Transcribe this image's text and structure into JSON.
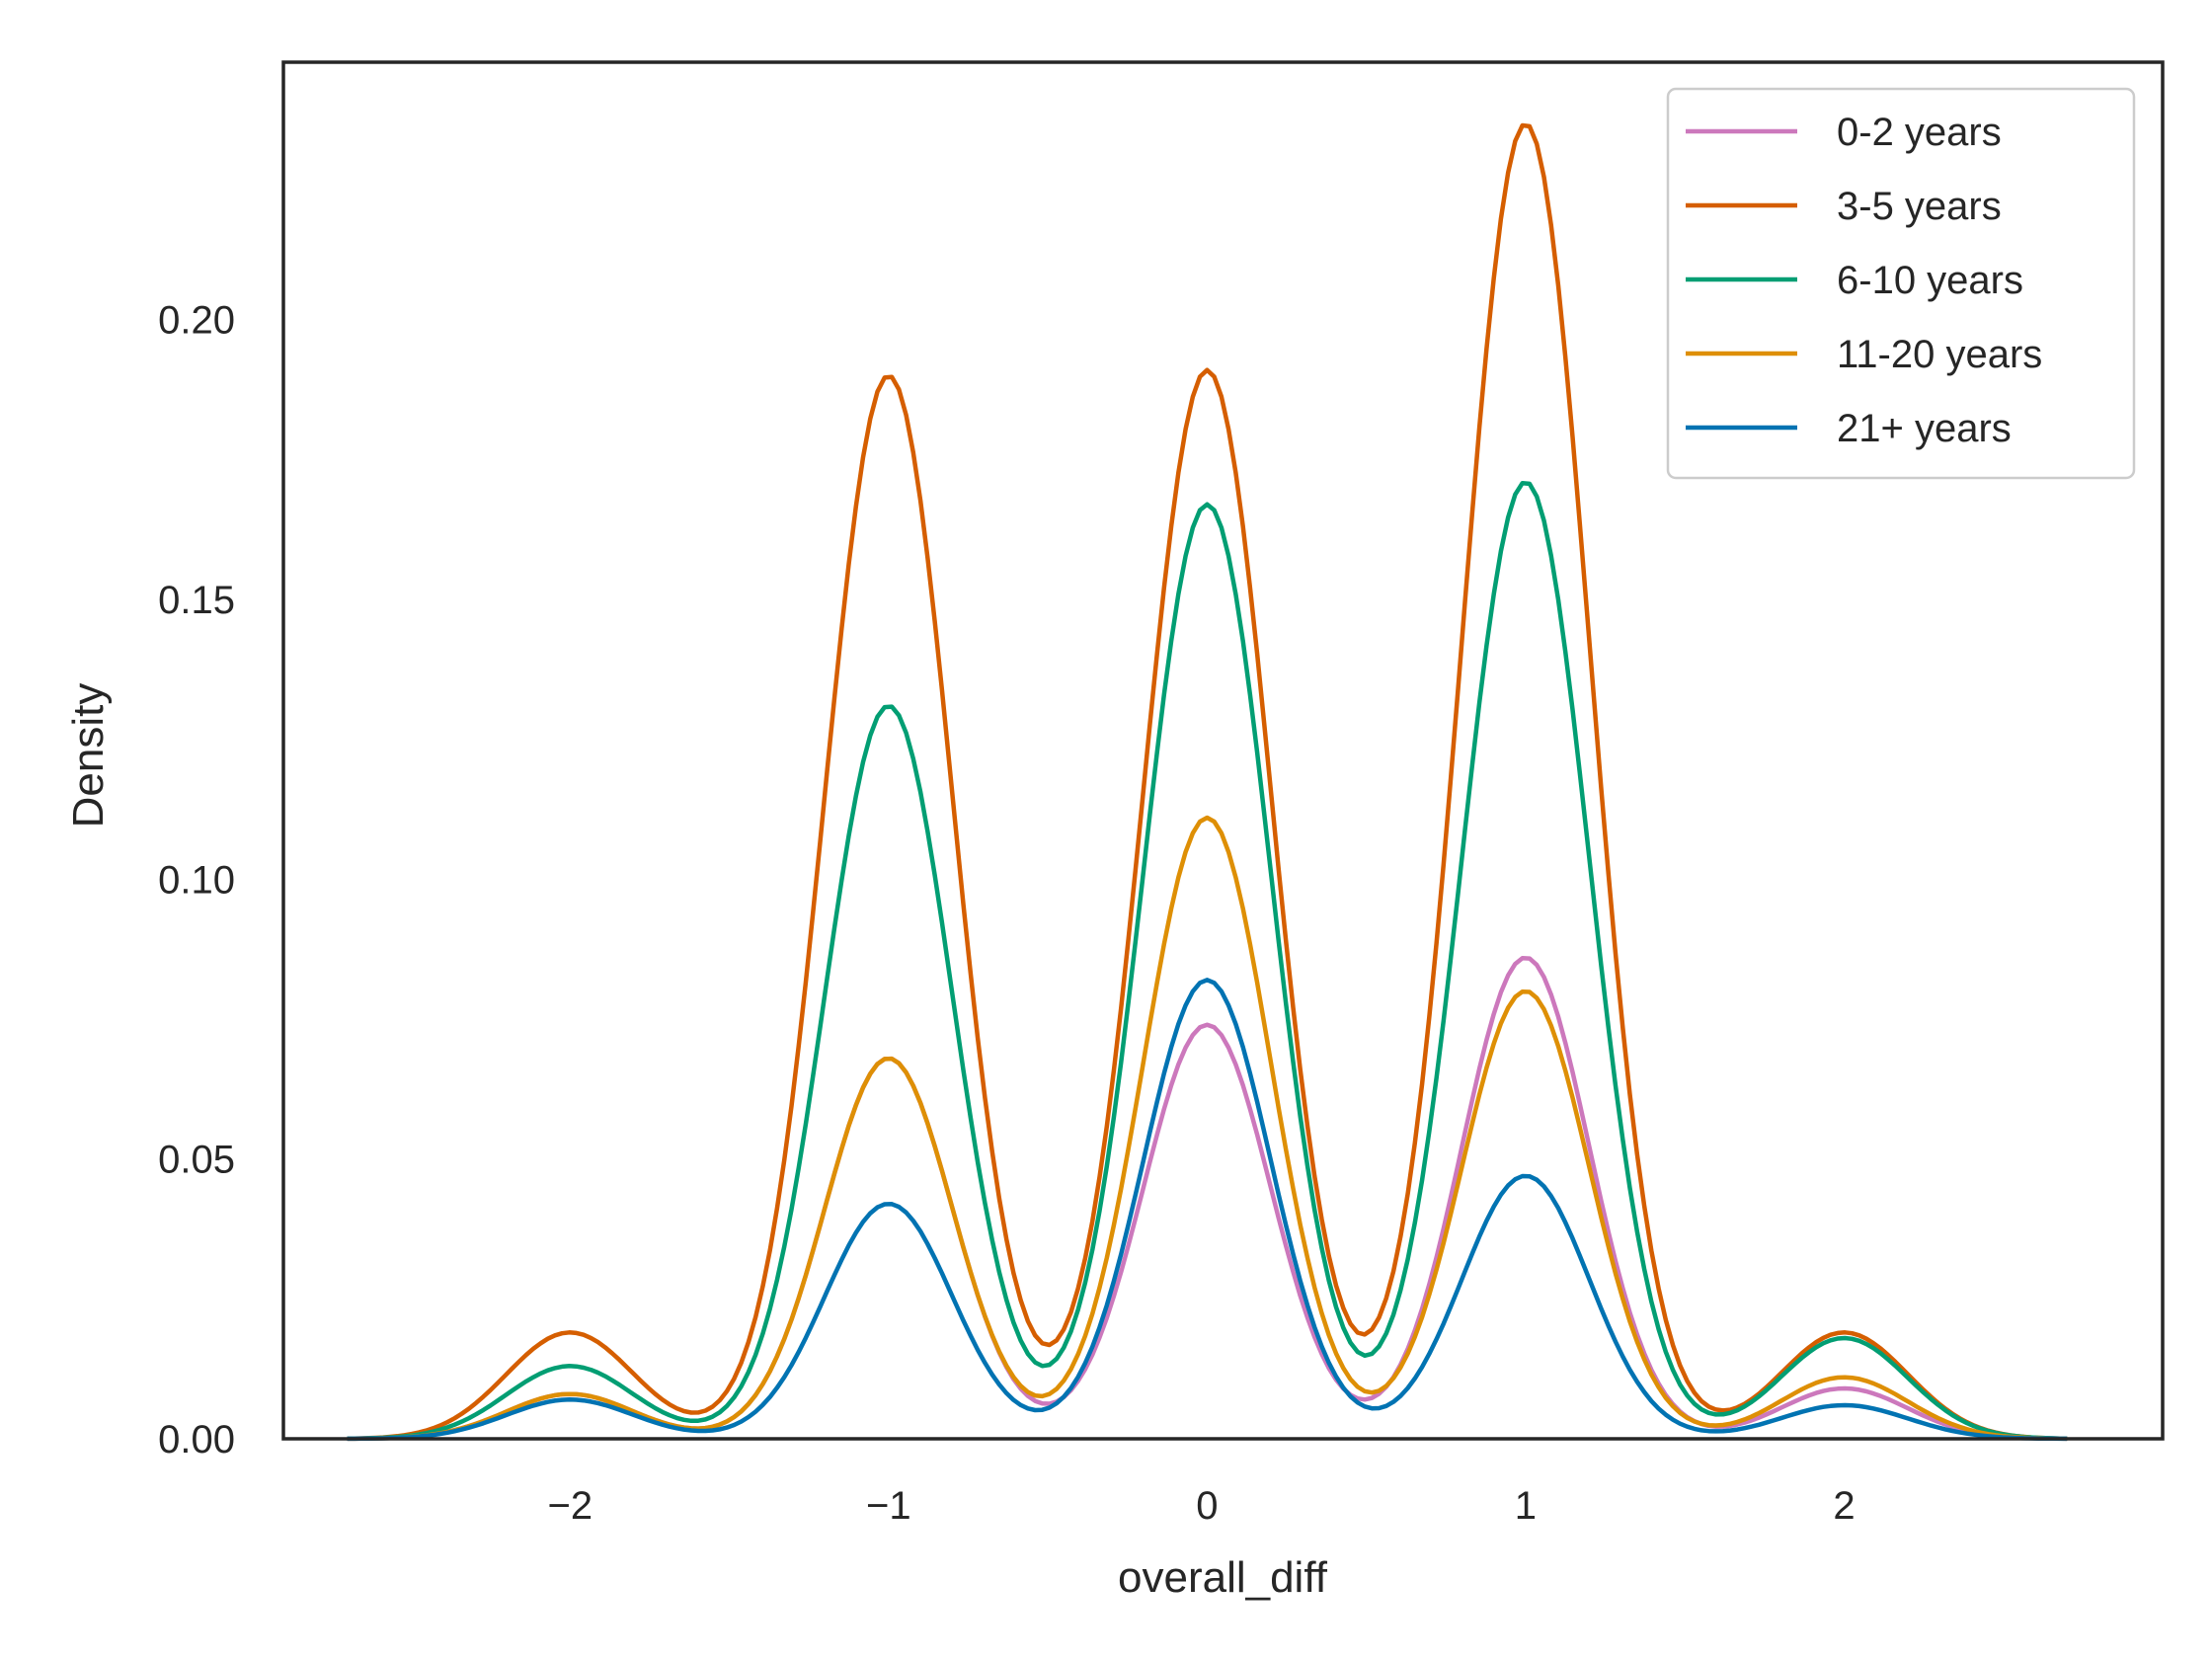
{
  "chart_data": {
    "type": "line",
    "title": "",
    "xlabel": "overall_diff",
    "ylabel": "Density",
    "xlim": [
      -2.9,
      3.0
    ],
    "ylim": [
      0,
      0.246
    ],
    "x_ticks": [
      -2,
      -1,
      0,
      1,
      2
    ],
    "x_tick_labels": [
      "−2",
      "−1",
      "0",
      "1",
      "2"
    ],
    "y_ticks": [
      0.0,
      0.05,
      0.1,
      0.15,
      0.2
    ],
    "y_tick_labels": [
      "0.00",
      "0.05",
      "0.10",
      "0.15",
      "0.20"
    ],
    "grid": false,
    "legend_position": "top-right",
    "x_range": [
      -2.7,
      2.7
    ],
    "peak_locations": [
      -2,
      -1,
      0,
      1,
      2
    ],
    "series": [
      {
        "name": "0-2 years",
        "color": "#cc78bc",
        "peaks": [
          0.008,
          0.068,
          0.074,
          0.086,
          0.009
        ]
      },
      {
        "name": "3-5 years",
        "color": "#d55e00",
        "peaks": [
          0.019,
          0.19,
          0.191,
          0.235,
          0.019
        ]
      },
      {
        "name": "6-10 years",
        "color": "#029e73",
        "peaks": [
          0.013,
          0.131,
          0.167,
          0.171,
          0.018
        ]
      },
      {
        "name": "11-20 years",
        "color": "#de8f05",
        "peaks": [
          0.008,
          0.068,
          0.111,
          0.08,
          0.011
        ]
      },
      {
        "name": "21+ years",
        "color": "#0173b2",
        "peaks": [
          0.007,
          0.042,
          0.082,
          0.047,
          0.006
        ]
      }
    ]
  }
}
